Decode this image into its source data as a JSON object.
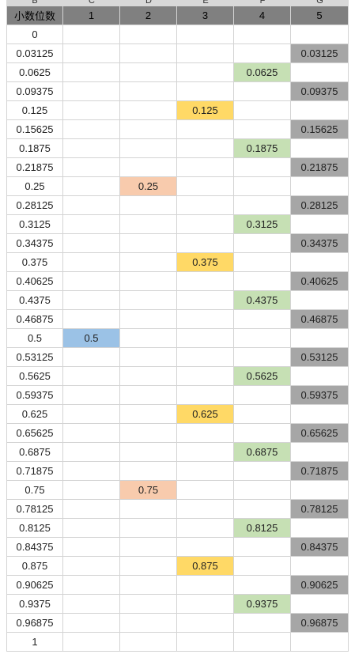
{
  "column_letters": [
    "B",
    "C",
    "D",
    "E",
    "F",
    "G"
  ],
  "header_row": [
    "小数位数",
    "1",
    "2",
    "3",
    "4",
    "5"
  ],
  "rows": [
    [
      "0",
      "",
      "",
      "",
      "",
      ""
    ],
    [
      "0.03125",
      "",
      "",
      "",
      "",
      "0.03125"
    ],
    [
      "0.0625",
      "",
      "",
      "",
      "0.0625",
      ""
    ],
    [
      "0.09375",
      "",
      "",
      "",
      "",
      "0.09375"
    ],
    [
      "0.125",
      "",
      "",
      "0.125",
      "",
      ""
    ],
    [
      "0.15625",
      "",
      "",
      "",
      "",
      "0.15625"
    ],
    [
      "0.1875",
      "",
      "",
      "",
      "0.1875",
      ""
    ],
    [
      "0.21875",
      "",
      "",
      "",
      "",
      "0.21875"
    ],
    [
      "0.25",
      "",
      "0.25",
      "",
      "",
      ""
    ],
    [
      "0.28125",
      "",
      "",
      "",
      "",
      "0.28125"
    ],
    [
      "0.3125",
      "",
      "",
      "",
      "0.3125",
      ""
    ],
    [
      "0.34375",
      "",
      "",
      "",
      "",
      "0.34375"
    ],
    [
      "0.375",
      "",
      "",
      "0.375",
      "",
      ""
    ],
    [
      "0.40625",
      "",
      "",
      "",
      "",
      "0.40625"
    ],
    [
      "0.4375",
      "",
      "",
      "",
      "0.4375",
      ""
    ],
    [
      "0.46875",
      "",
      "",
      "",
      "",
      "0.46875"
    ],
    [
      "0.5",
      "0.5",
      "",
      "",
      "",
      ""
    ],
    [
      "0.53125",
      "",
      "",
      "",
      "",
      "0.53125"
    ],
    [
      "0.5625",
      "",
      "",
      "",
      "0.5625",
      ""
    ],
    [
      "0.59375",
      "",
      "",
      "",
      "",
      "0.59375"
    ],
    [
      "0.625",
      "",
      "",
      "0.625",
      "",
      ""
    ],
    [
      "0.65625",
      "",
      "",
      "",
      "",
      "0.65625"
    ],
    [
      "0.6875",
      "",
      "",
      "",
      "0.6875",
      ""
    ],
    [
      "0.71875",
      "",
      "",
      "",
      "",
      "0.71875"
    ],
    [
      "0.75",
      "",
      "0.75",
      "",
      "",
      ""
    ],
    [
      "0.78125",
      "",
      "",
      "",
      "",
      "0.78125"
    ],
    [
      "0.8125",
      "",
      "",
      "",
      "0.8125",
      ""
    ],
    [
      "0.84375",
      "",
      "",
      "",
      "",
      "0.84375"
    ],
    [
      "0.875",
      "",
      "",
      "0.875",
      "",
      ""
    ],
    [
      "0.90625",
      "",
      "",
      "",
      "",
      "0.90625"
    ],
    [
      "0.9375",
      "",
      "",
      "",
      "0.9375",
      ""
    ],
    [
      "0.96875",
      "",
      "",
      "",
      "",
      "0.96875"
    ],
    [
      "1",
      "",
      "",
      "",
      "",
      ""
    ]
  ],
  "colors": {
    "header_fill": "#808080",
    "col1_fill": "#9bc2e6",
    "col2_fill": "#f8cbad",
    "col3_fill": "#ffd966",
    "col4_fill": "#c6e0b4",
    "col5_fill": "#a6a6a6",
    "gridline": "#d4d4d4"
  }
}
